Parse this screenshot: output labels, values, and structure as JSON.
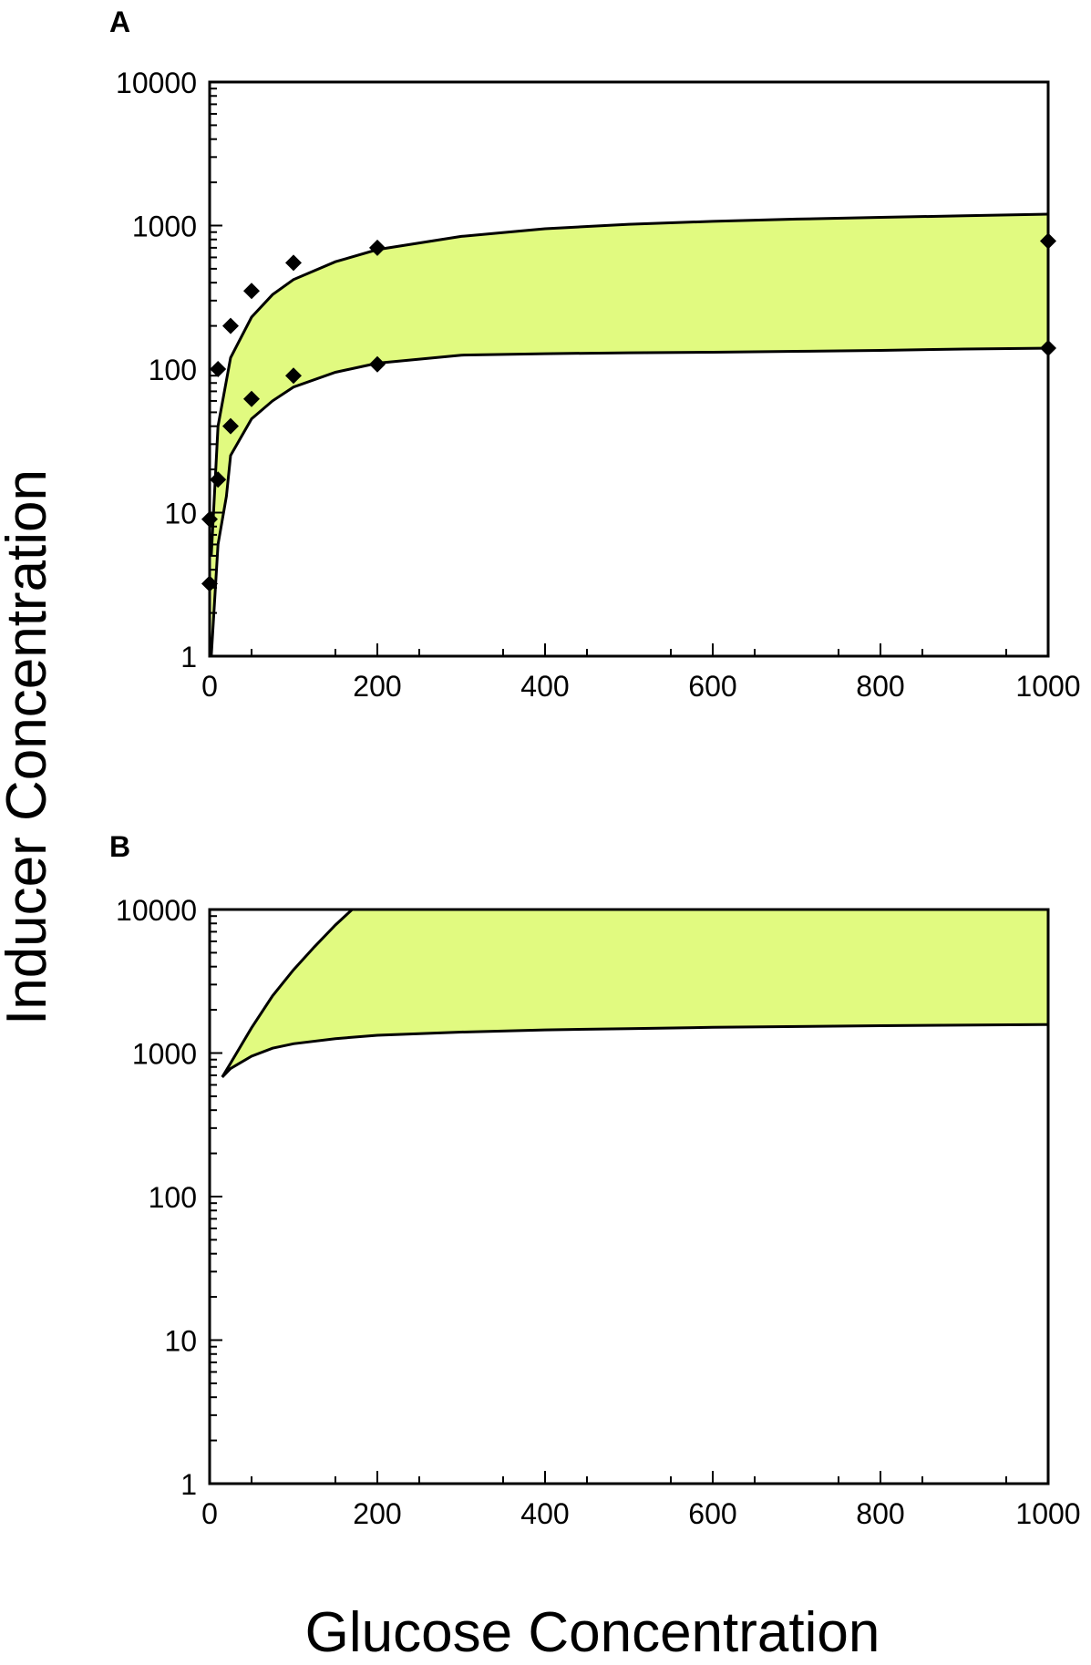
{
  "ylabel": "Inducer Concentration",
  "xlabel": "Glucose Concentration",
  "chart_data": [
    {
      "panel": "A",
      "type": "area",
      "xlabel": "Glucose Concentration",
      "ylabel": "Inducer Concentration",
      "xlim": [
        0,
        1000
      ],
      "ylim": [
        1,
        10000
      ],
      "yscale": "log",
      "grid": false,
      "x_ticks": [
        "0",
        "200",
        "400",
        "600",
        "800",
        "1000"
      ],
      "y_ticks": [
        "1",
        "10",
        "100",
        "1000",
        "10000"
      ],
      "fill_color": "#e1fa80",
      "series": [
        {
          "role": "upper_boundary",
          "x": [
            2,
            10,
            25,
            50,
            75,
            100,
            150,
            200,
            300,
            400,
            500,
            600,
            700,
            800,
            900,
            1000
          ],
          "values": [
            5,
            40,
            120,
            230,
            330,
            420,
            560,
            680,
            840,
            950,
            1020,
            1070,
            1110,
            1140,
            1170,
            1200
          ]
        },
        {
          "role": "lower_boundary",
          "x": [
            2,
            10,
            20,
            25,
            50,
            75,
            100,
            150,
            200,
            300,
            400,
            500,
            600,
            700,
            800,
            900,
            1000
          ],
          "values": [
            1,
            6,
            13,
            25,
            45,
            60,
            75,
            95,
            110,
            125,
            128,
            130,
            131,
            133,
            135,
            138,
            140
          ]
        },
        {
          "role": "data_points",
          "x": [
            0,
            10,
            25,
            50,
            100,
            200,
            1000,
            0,
            10,
            25,
            50,
            100,
            200,
            1000
          ],
          "values": [
            3.2,
            100,
            200,
            350,
            550,
            700,
            780,
            9,
            17,
            40,
            62,
            90,
            108,
            140
          ]
        }
      ]
    },
    {
      "panel": "B",
      "type": "area",
      "xlabel": "Glucose Concentration",
      "ylabel": "Inducer Concentration",
      "xlim": [
        0,
        1000
      ],
      "ylim": [
        1,
        10000
      ],
      "yscale": "log",
      "grid": false,
      "x_ticks": [
        "0",
        "200",
        "400",
        "600",
        "800",
        "1000"
      ],
      "y_ticks": [
        "1",
        "10",
        "100",
        "1000",
        "10000"
      ],
      "fill_color": "#e1fa80",
      "series": [
        {
          "role": "upper_boundary",
          "x": [
            15,
            25,
            50,
            75,
            100,
            125,
            150,
            170,
            1000
          ],
          "values": [
            680,
            850,
            1500,
            2500,
            3800,
            5500,
            7800,
            10000,
            10000
          ]
        },
        {
          "role": "lower_boundary",
          "x": [
            15,
            25,
            50,
            75,
            100,
            150,
            200,
            300,
            400,
            500,
            600,
            800,
            1000
          ],
          "values": [
            680,
            780,
            950,
            1080,
            1160,
            1260,
            1330,
            1400,
            1450,
            1480,
            1510,
            1550,
            1580
          ]
        }
      ]
    }
  ]
}
